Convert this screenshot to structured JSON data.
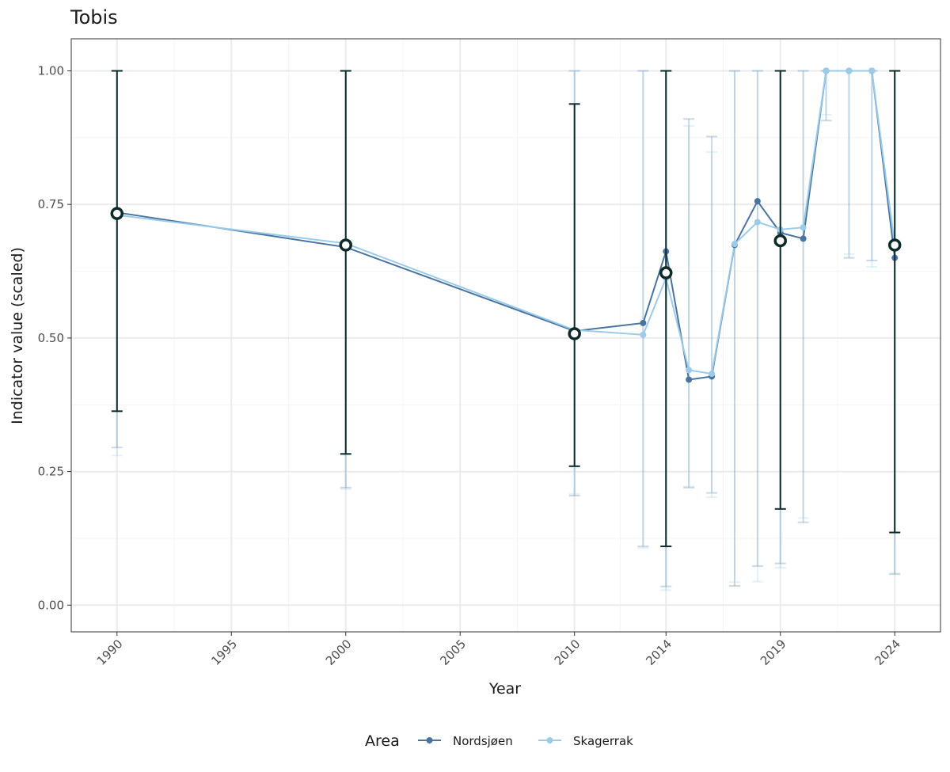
{
  "chart_data": {
    "type": "line",
    "title": "Tobis",
    "xlabel": "Year",
    "ylabel": "Indicator value (scaled)",
    "x_ticks": [
      1990,
      1995,
      2000,
      2005,
      2010,
      2014,
      2019,
      2024
    ],
    "y_ticks": [
      "0.00",
      "0.25",
      "0.50",
      "0.75",
      "1.00"
    ],
    "xlim": [
      1988,
      2026
    ],
    "ylim": [
      -0.05,
      1.06
    ],
    "grid": true,
    "legend": {
      "title": "Area",
      "placement": "bottom",
      "entries": [
        "Nordsjøen",
        "Skagerrak"
      ]
    },
    "series": [
      {
        "name": "Nordsjøen",
        "color": "#4a74a0",
        "points": [
          {
            "x": 1990,
            "y": 0.735,
            "lo": 0.295,
            "hi": 1.0
          },
          {
            "x": 2000,
            "y": 0.67,
            "lo": 0.22,
            "hi": 1.0
          },
          {
            "x": 2010,
            "y": 0.513,
            "lo": 0.205,
            "hi": 1.0
          },
          {
            "x": 2013,
            "y": 0.528,
            "lo": 0.11,
            "hi": 1.0
          },
          {
            "x": 2014,
            "y": 0.662,
            "lo": 0.035,
            "hi": 1.0
          },
          {
            "x": 2015,
            "y": 0.422,
            "lo": 0.22,
            "hi": 0.91
          },
          {
            "x": 2016,
            "y": 0.428,
            "lo": 0.21,
            "hi": 0.877
          },
          {
            "x": 2017,
            "y": 0.674,
            "lo": 0.036,
            "hi": 1.0
          },
          {
            "x": 2018,
            "y": 0.756,
            "lo": 0.073,
            "hi": 1.0
          },
          {
            "x": 2019,
            "y": 0.697,
            "lo": 0.078,
            "hi": 1.0
          },
          {
            "x": 2020,
            "y": 0.686,
            "lo": 0.155,
            "hi": 1.0
          },
          {
            "x": 2021,
            "y": 1.0,
            "lo": 0.907,
            "hi": 1.0
          },
          {
            "x": 2022,
            "y": 1.0,
            "lo": 0.65,
            "hi": 1.0
          },
          {
            "x": 2023,
            "y": 1.0,
            "lo": 0.645,
            "hi": 1.0
          },
          {
            "x": 2024,
            "y": 0.65,
            "lo": 0.058,
            "hi": 1.0
          }
        ]
      },
      {
        "name": "Skagerrak",
        "color": "#9ccbe8",
        "points": [
          {
            "x": 1990,
            "y": 0.73,
            "lo": 0.28,
            "hi": 1.0
          },
          {
            "x": 2000,
            "y": 0.677,
            "lo": 0.217,
            "hi": 1.0
          },
          {
            "x": 2010,
            "y": 0.515,
            "lo": 0.208,
            "hi": 1.0
          },
          {
            "x": 2013,
            "y": 0.506,
            "lo": 0.107,
            "hi": 1.0
          },
          {
            "x": 2014,
            "y": 0.612,
            "lo": 0.028,
            "hi": 1.0
          },
          {
            "x": 2015,
            "y": 0.44,
            "lo": 0.222,
            "hi": 0.897
          },
          {
            "x": 2016,
            "y": 0.433,
            "lo": 0.202,
            "hi": 0.848
          },
          {
            "x": 2017,
            "y": 0.676,
            "lo": 0.043,
            "hi": 1.0
          },
          {
            "x": 2018,
            "y": 0.717,
            "lo": 0.044,
            "hi": 1.0
          },
          {
            "x": 2019,
            "y": 0.703,
            "lo": 0.07,
            "hi": 1.0
          },
          {
            "x": 2020,
            "y": 0.707,
            "lo": 0.163,
            "hi": 1.0
          },
          {
            "x": 2021,
            "y": 1.0,
            "lo": 0.918,
            "hi": 1.0
          },
          {
            "x": 2022,
            "y": 1.0,
            "lo": 0.657,
            "hi": 1.0
          },
          {
            "x": 2023,
            "y": 1.0,
            "lo": 0.633,
            "hi": 1.0
          },
          {
            "x": 2024,
            "y": 0.674,
            "lo": 0.06,
            "hi": 1.0
          }
        ]
      }
    ],
    "aggregate": {
      "color": "#0d2b28",
      "points": [
        {
          "x": 1990,
          "y": 0.733,
          "lo": 0.363,
          "hi": 1.0
        },
        {
          "x": 2000,
          "y": 0.674,
          "lo": 0.283,
          "hi": 1.0
        },
        {
          "x": 2010,
          "y": 0.508,
          "lo": 0.26,
          "hi": 0.938
        },
        {
          "x": 2014,
          "y": 0.622,
          "lo": 0.11,
          "hi": 1.0
        },
        {
          "x": 2019,
          "y": 0.682,
          "lo": 0.18,
          "hi": 1.0
        },
        {
          "x": 2024,
          "y": 0.674,
          "lo": 0.136,
          "hi": 1.0
        }
      ]
    }
  }
}
